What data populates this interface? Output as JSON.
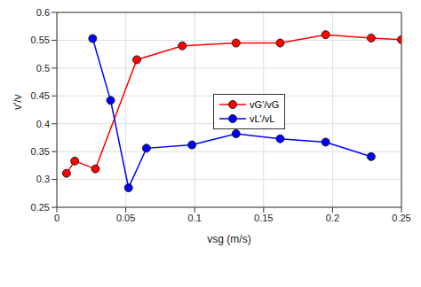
{
  "chart_data": {
    "type": "line",
    "x_label": "vsg (m/s)",
    "y_label": "v'/v",
    "xlim": [
      0,
      0.25
    ],
    "xticks": [
      0,
      0.05,
      0.1,
      0.15,
      0.2,
      0.25
    ],
    "ylim": [
      0.25,
      0.6
    ],
    "yticks": [
      0.25,
      0.3,
      0.35,
      0.4,
      0.45,
      0.5,
      0.55,
      0.6
    ],
    "grid": true,
    "legend": "center",
    "series": [
      {
        "name": "vG'/vG",
        "color": "#ff0000",
        "marker": "circle",
        "line_style": "solid",
        "x": [
          0.007,
          0.013,
          0.028,
          0.058,
          0.091,
          0.13,
          0.162,
          0.195,
          0.228,
          0.25
        ],
        "values": [
          0.311,
          0.333,
          0.319,
          0.515,
          0.54,
          0.545,
          0.545,
          0.56,
          0.554,
          0.551
        ]
      },
      {
        "name": "vL'/vL",
        "color": "#0000ff",
        "marker": "circle",
        "line_style": "solid",
        "x": [
          0.026,
          0.039,
          0.052,
          0.065,
          0.098,
          0.13,
          0.162,
          0.195,
          0.228
        ],
        "values": [
          0.553,
          0.442,
          0.285,
          0.356,
          0.362,
          0.382,
          0.373,
          0.367,
          0.341
        ]
      }
    ]
  }
}
